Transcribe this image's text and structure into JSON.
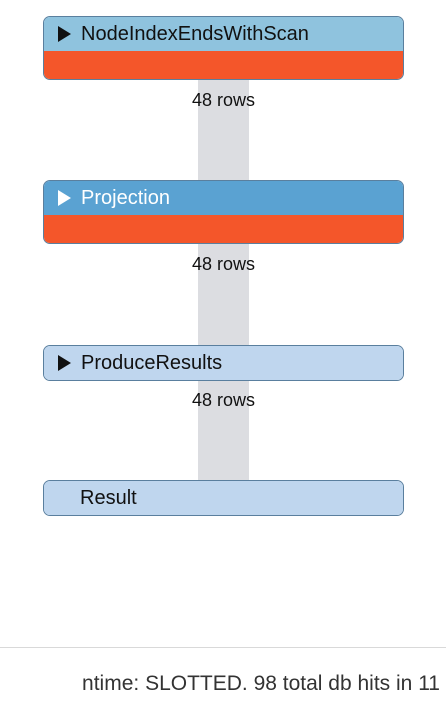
{
  "plan": {
    "operators": [
      {
        "label": "NodeIndexEndsWithScan",
        "expandable": true,
        "icon": "play-triangle-icon"
      },
      {
        "label": "Projection",
        "expandable": true,
        "icon": "play-triangle-icon"
      },
      {
        "label": "ProduceResults",
        "expandable": true,
        "icon": "play-triangle-icon"
      },
      {
        "label": "Result",
        "expandable": false
      }
    ],
    "edges": [
      {
        "rows_label": "48 rows"
      },
      {
        "rows_label": "48 rows"
      },
      {
        "rows_label": "48 rows"
      }
    ]
  },
  "footer": {
    "text": "ntime: SLOTTED. 98 total db hits in 11"
  },
  "colors": {
    "header_light": "#8fc3de",
    "header_mid": "#5aa2d2",
    "header_pale": "#bfd6ee",
    "cost_bar": "#f4562a",
    "connector": "#dcdde1"
  }
}
